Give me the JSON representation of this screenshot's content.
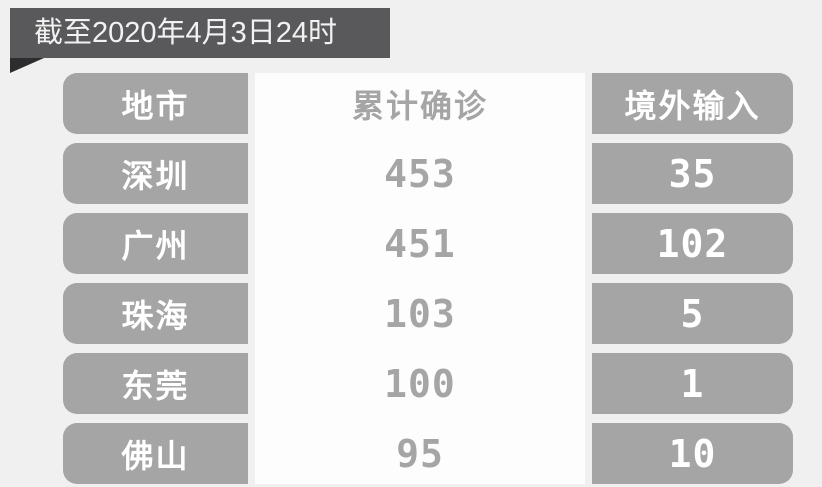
{
  "banner": {
    "title": "截至2020年4月3日24时"
  },
  "colors": {
    "banner_bg": "#59595b",
    "banner_fold": "#2d2d2f",
    "cell_gray": "#a5a5a5",
    "cell_white": "#fdfdfd",
    "page_bg": "#f0f0f0",
    "text_white": "#ffffff",
    "text_gray": "#a5a5a5"
  },
  "table": {
    "columns": [
      {
        "key": "city",
        "label": "地市"
      },
      {
        "key": "confirmed",
        "label": "累计确诊"
      },
      {
        "key": "imported",
        "label": "境外输入"
      }
    ],
    "rows": [
      {
        "city": "深圳",
        "confirmed": "453",
        "imported": "35"
      },
      {
        "city": "广州",
        "confirmed": "451",
        "imported": "102"
      },
      {
        "city": "珠海",
        "confirmed": "103",
        "imported": "5"
      },
      {
        "city": "东莞",
        "confirmed": "100",
        "imported": "1"
      },
      {
        "city": "佛山",
        "confirmed": "95",
        "imported": "10"
      }
    ]
  },
  "chart_data": {
    "type": "table",
    "title": "截至2020年4月3日24时",
    "columns": [
      "地市",
      "累计确诊",
      "境外输入"
    ],
    "rows": [
      [
        "深圳",
        453,
        35
      ],
      [
        "广州",
        451,
        102
      ],
      [
        "珠海",
        103,
        5
      ],
      [
        "东莞",
        100,
        1
      ],
      [
        "佛山",
        95,
        10
      ]
    ]
  }
}
